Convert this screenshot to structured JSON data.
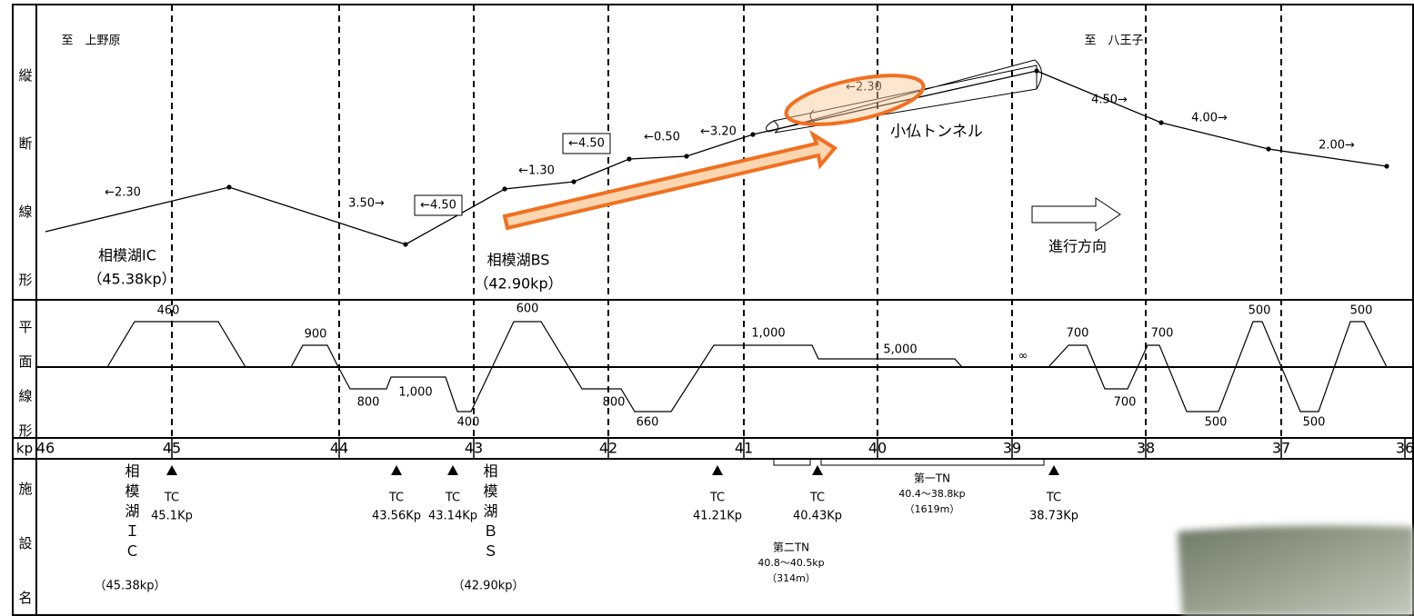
{
  "row_labels": {
    "profile": "縦断線形",
    "plan": "平面線形",
    "kp": "kp",
    "facilities": "施設名"
  },
  "profile": {
    "from": "至　上野原",
    "to": "至　八王子",
    "gradients": [
      "←2.30",
      "3.50→",
      "←4.50",
      "←1.30",
      "←4.50",
      "←0.50",
      "←3.20",
      "←2.30",
      "4.50→",
      "4.00→",
      "2.00→"
    ],
    "places": [
      {
        "name": "相模湖IC",
        "kp": "（45.38kp）"
      },
      {
        "name": "相模湖BS",
        "kp": "（42.90kp）"
      }
    ],
    "tunnel": "小仏トンネル",
    "direction": "進行方向"
  },
  "plan": {
    "radii": [
      "460",
      "900",
      "800",
      "1,000",
      "400",
      "600",
      "800",
      "660",
      "1,000",
      "5,000",
      "∞",
      "700",
      "700",
      "700",
      "500",
      "500",
      "500",
      "500"
    ]
  },
  "kp_ticks": [
    "46",
    "45",
    "44",
    "43",
    "42",
    "41",
    "40",
    "39",
    "38",
    "37",
    "36"
  ],
  "facilities": {
    "interchanges": [
      {
        "name": "相模湖ＩＣ",
        "kp": "（45.38kp）"
      },
      {
        "name": "相模湖ＢＳ",
        "kp": "（42.90kp）"
      }
    ],
    "toll_stations": [
      {
        "name": "TC",
        "kp": "45.1Kp"
      },
      {
        "name": "TC",
        "kp": "43.56Kp"
      },
      {
        "name": "TC",
        "kp": "43.14Kp"
      },
      {
        "name": "TC",
        "kp": "41.21Kp"
      },
      {
        "name": "TC",
        "kp": "40.43Kp"
      },
      {
        "name": "TC",
        "kp": "38.73Kp"
      }
    ],
    "tunnels": [
      {
        "name": "第一TN",
        "range": "40.4～38.8kp",
        "length": "（1619m）"
      },
      {
        "name": "第二TN",
        "range": "40.8～40.5kp",
        "length": "（314m）"
      }
    ]
  }
}
